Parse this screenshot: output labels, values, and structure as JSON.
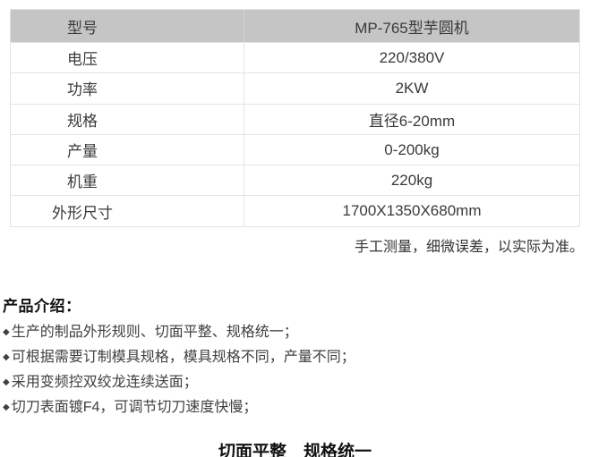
{
  "colors": {
    "header-bg": "#c5c5c5",
    "table-border": "#e3e3e3",
    "table-text": "#3a3a3a",
    "body-text": "#404040",
    "heading-text": "#111111",
    "note-text": "#333333",
    "page-bg": "#ffffff"
  },
  "spec_table": {
    "rows": [
      {
        "label": "型号",
        "value": "MP-765型芋圆机"
      },
      {
        "label": "电压",
        "value": "220/380V"
      },
      {
        "label": "功率",
        "value": "2KW"
      },
      {
        "label": "规格",
        "value": "直径6-20mm"
      },
      {
        "label": "产量",
        "value": "0-200kg"
      },
      {
        "label": "机重",
        "value": "220kg"
      },
      {
        "label": "外形尺寸",
        "value": "1700X1350X680mm"
      }
    ]
  },
  "note": "手工测量，细微误差，以实际为准。",
  "intro": {
    "heading": "产品介绍：",
    "bullet_marker": "◆",
    "bullets": [
      "生产的制品外形规则、切面平整、规格统一；",
      "可根据需要订制模具规格，模具规格不同，产量不同；",
      "采用变频控双绞龙连续送面；",
      "切刀表面镀F4，可调节切刀速度快慢；"
    ]
  },
  "footer_heading": "切面平整　规格统一"
}
